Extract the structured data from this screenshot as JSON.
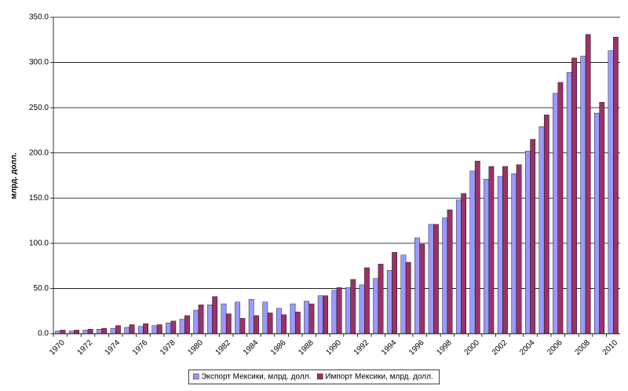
{
  "chart_data": {
    "type": "bar",
    "y_label": "млрд. долл.",
    "categories": [
      "1970",
      null,
      "1972",
      null,
      "1974",
      null,
      "1976",
      null,
      "1978",
      null,
      "1980",
      null,
      "1982",
      null,
      "1984",
      null,
      "1986",
      null,
      "1988",
      null,
      "1990",
      null,
      "1992",
      null,
      "1994",
      null,
      "1996",
      null,
      "1998",
      null,
      "2000",
      null,
      "2002",
      null,
      "2004",
      null,
      "2006",
      null,
      "2008",
      null,
      "2010"
    ],
    "series": [
      {
        "name": "Экспорт Мексики, млрд. долл.",
        "color": "#9999ff",
        "values": [
          3,
          3,
          4,
          5,
          6,
          7,
          8,
          9,
          12,
          16,
          26,
          32,
          33,
          35,
          38,
          35,
          28,
          33,
          36,
          42,
          48,
          51,
          54,
          61,
          70,
          87,
          106,
          121,
          128,
          148,
          180,
          171,
          174,
          177,
          202,
          229,
          266,
          289,
          307,
          244,
          313
        ]
      },
      {
        "name": "Импорт Мексики, млрд. долл.",
        "color": "#993366",
        "values": [
          4,
          4,
          5,
          6,
          9,
          10,
          11,
          10,
          14,
          20,
          32,
          41,
          22,
          17,
          20,
          23,
          21,
          24,
          33,
          42,
          51,
          60,
          73,
          77,
          90,
          79,
          99,
          121,
          137,
          155,
          191,
          185,
          185,
          187,
          215,
          242,
          278,
          305,
          331,
          256,
          328
        ]
      }
    ],
    "ylim": [
      0,
      350
    ],
    "yticks": [
      {
        "value": 0,
        "label": "0.0"
      },
      {
        "value": 50,
        "label": "50.0"
      },
      {
        "value": 100,
        "label": "100.0"
      },
      {
        "value": 150,
        "label": "150.0"
      },
      {
        "value": 200,
        "label": "200.0"
      },
      {
        "value": 250,
        "label": "250.0"
      },
      {
        "value": 300,
        "label": "300.0"
      },
      {
        "value": 350,
        "label": "350.0"
      }
    ],
    "grid": true,
    "legend": "bottom"
  }
}
